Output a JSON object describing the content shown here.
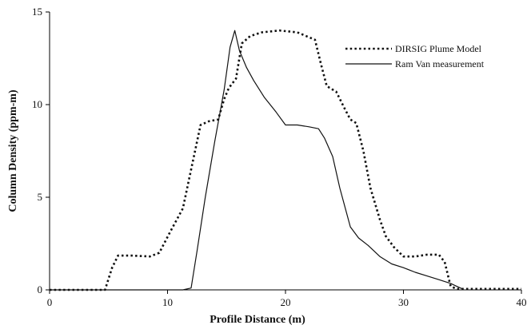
{
  "chart_data": {
    "type": "line",
    "title": "",
    "xlabel": "Profile Distance (m)",
    "ylabel": "Column Density (ppm-m)",
    "xlim": [
      0,
      40
    ],
    "ylim": [
      0,
      15
    ],
    "xticks": [
      "0",
      "10",
      "20",
      "30",
      "40"
    ],
    "yticks": [
      "0",
      "5",
      "10",
      "15"
    ],
    "grid": false,
    "legend_position": "top-right",
    "series": [
      {
        "name": "DIRSIG Plume Model",
        "style": "dotted",
        "color": "#111111",
        "x": [
          0,
          4.7,
          5.3,
          5.8,
          7,
          8.5,
          9.3,
          10.2,
          11.3,
          12,
          12.8,
          13.5,
          14.3,
          14.8,
          15.2,
          15.8,
          16.3,
          17,
          18,
          19.5,
          21,
          22.5,
          23,
          23.5,
          24.3,
          25,
          25.5,
          26,
          26.6,
          27.2,
          28,
          28.5,
          29.2,
          30,
          31,
          32,
          33,
          33.5,
          34,
          34.5,
          36,
          40
        ],
        "y": [
          0,
          0,
          1.2,
          1.85,
          1.85,
          1.8,
          2.0,
          3.1,
          4.4,
          6.5,
          8.9,
          9.1,
          9.2,
          10.3,
          10.9,
          11.4,
          13.3,
          13.7,
          13.9,
          14.0,
          13.9,
          13.5,
          12.2,
          11.0,
          10.7,
          9.8,
          9.2,
          9.0,
          7.5,
          5.5,
          3.8,
          2.9,
          2.3,
          1.8,
          1.8,
          1.9,
          1.9,
          1.5,
          0.2,
          0.05,
          0.05,
          0.05
        ]
      },
      {
        "name": "Ram Van measurement",
        "style": "solid",
        "color": "#111111",
        "x": [
          0,
          11.3,
          12,
          12.5,
          13.2,
          14,
          14.8,
          15.3,
          15.7,
          16.1,
          16.7,
          17.3,
          18.2,
          19.2,
          20,
          21,
          22,
          22.8,
          23.3,
          24,
          24.6,
          25.5,
          26.2,
          27,
          28,
          29,
          30,
          31,
          32,
          33,
          34,
          34.5,
          35
        ],
        "y": [
          0,
          0,
          0.1,
          2.1,
          5.0,
          8.0,
          10.8,
          13.1,
          14.0,
          12.9,
          12.0,
          11.3,
          10.4,
          9.6,
          8.9,
          8.9,
          8.8,
          8.7,
          8.2,
          7.2,
          5.5,
          3.4,
          2.8,
          2.4,
          1.8,
          1.4,
          1.2,
          0.95,
          0.75,
          0.55,
          0.35,
          0.2,
          0.05
        ]
      }
    ]
  }
}
